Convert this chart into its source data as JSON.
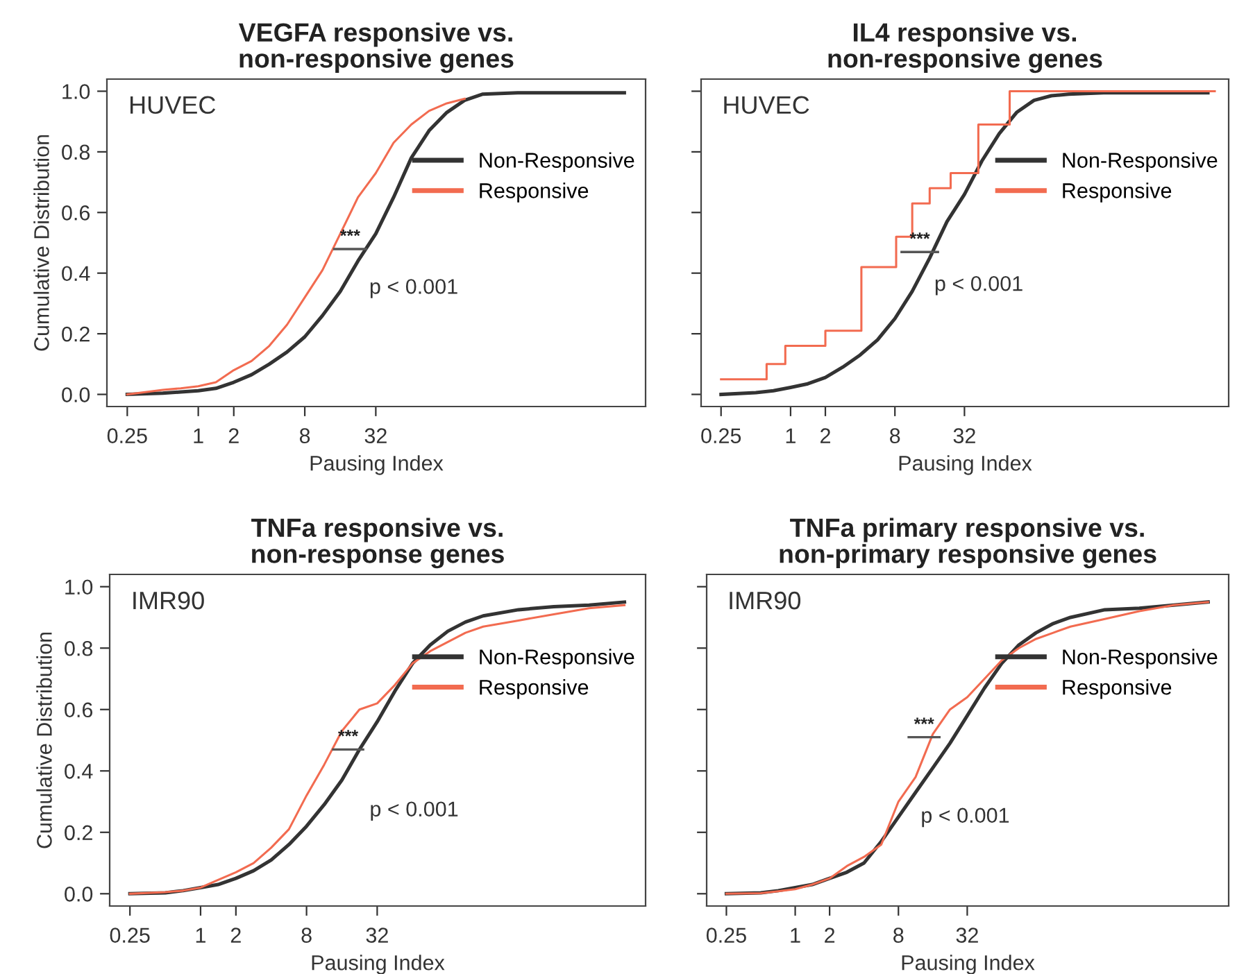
{
  "chart_data": [
    {
      "type": "line",
      "title": "VEGFA responsive vs.\nnon-responsive genes",
      "xlabel": "Pausing Index",
      "ylabel": "Cumulative Distribution",
      "log": "x",
      "legend": "right",
      "x": [
        0.25,
        0.5,
        0.71,
        1,
        1.41,
        2,
        2.83,
        4,
        5.66,
        8,
        11.3,
        16,
        22.6,
        32,
        45.3,
        64,
        90.5,
        128,
        181,
        256,
        512,
        1024,
        2048,
        4096
      ],
      "series": [
        {
          "name": "Non-Responsive",
          "color": "#333333",
          "values": [
            0,
            0.004,
            0.008,
            0.012,
            0.02,
            0.04,
            0.065,
            0.1,
            0.14,
            0.19,
            0.26,
            0.34,
            0.44,
            0.53,
            0.65,
            0.78,
            0.87,
            0.93,
            0.97,
            0.99,
            0.995,
            0.995,
            0.995,
            0.995
          ]
        },
        {
          "name": "Responsive",
          "color": "#f26b50",
          "values": [
            0,
            0.015,
            0.02,
            0.027,
            0.04,
            0.08,
            0.11,
            0.16,
            0.23,
            0.32,
            0.41,
            0.53,
            0.65,
            0.73,
            0.83,
            0.89,
            0.935,
            0.96,
            0.975,
            null,
            null,
            null,
            null,
            null
          ]
        }
      ],
      "annotations": [
        "HUVEC",
        "***",
        "p < 0.001"
      ],
      "xlim": [
        0.168,
        6200
      ],
      "xticks": [
        0.25,
        1,
        2,
        8,
        32
      ],
      "ylim": [
        -0.04,
        1.04
      ],
      "yticks": [
        {
          "value": 0,
          "label": "0.0"
        },
        {
          "value": 0.2,
          "label": "0.2"
        },
        {
          "value": 0.4,
          "label": "0.4"
        },
        {
          "value": 0.6,
          "label": "0.6"
        },
        {
          "value": 0.8,
          "label": "0.8"
        },
        {
          "value": 1,
          "label": "1.0"
        }
      ]
    },
    {
      "type": "line",
      "title": "IL4 responsive vs.\nnon-responsive genes",
      "xlabel": "Pausing Index",
      "log": "x",
      "legend": "right",
      "tick_labels": "x",
      "x": [
        0.25,
        0.5,
        0.71,
        1,
        1.41,
        2,
        2.83,
        4,
        5.66,
        8,
        11.3,
        16,
        22.6,
        32,
        45.3,
        64,
        90.5,
        128,
        181,
        256,
        512,
        1024,
        2048,
        4096
      ],
      "series": [
        {
          "name": "Non-Responsive",
          "color": "#333333",
          "values": [
            0,
            0.006,
            0.012,
            0.023,
            0.035,
            0.056,
            0.09,
            0.13,
            0.18,
            0.25,
            0.34,
            0.45,
            0.57,
            0.66,
            0.77,
            0.86,
            0.93,
            0.97,
            0.985,
            0.99,
            0.995,
            0.995,
            0.995,
            0.995
          ]
        },
        {
          "name": "Responsive",
          "color": "#f26b50",
          "type": "step",
          "x": [
            0.25,
            0.62,
            0.9,
            2,
            4.1,
            8.2,
            11.3,
            16,
            24.3,
            42.2,
            78.8,
            4700
          ],
          "values": [
            0.05,
            0.1,
            0.16,
            0.21,
            0.42,
            0.52,
            0.63,
            0.68,
            0.73,
            0.89,
            1.0,
            1.0
          ]
        }
      ],
      "annotations": [
        "HUVEC",
        "***",
        "p < 0.001"
      ],
      "xlim": [
        0.168,
        6200
      ],
      "xticks": [
        0.25,
        1,
        2,
        8,
        32
      ],
      "ylim": [
        -0.04,
        1.04
      ],
      "yticks": [
        {
          "value": 0,
          "label": null
        },
        {
          "value": 0.2,
          "label": null
        },
        {
          "value": 0.4,
          "label": null
        },
        {
          "value": 0.6,
          "label": null
        },
        {
          "value": 0.8,
          "label": null
        },
        {
          "value": 1,
          "label": null
        }
      ]
    },
    {
      "type": "line",
      "title": "TNFa responsive vs.\nnon-response genes",
      "xlabel": "Pausing Index",
      "ylabel": "Cumulative Distribution",
      "log": "x",
      "legend": "right",
      "x": [
        0.25,
        0.5,
        0.71,
        1,
        1.41,
        2,
        2.83,
        4,
        5.66,
        8,
        11.3,
        16,
        22.6,
        32,
        45.3,
        64,
        90.5,
        128,
        181,
        256,
        512,
        1024,
        2048,
        4096
      ],
      "series": [
        {
          "name": "Non-Responsive",
          "color": "#333333",
          "values": [
            0,
            0.003,
            0.01,
            0.02,
            0.03,
            0.05,
            0.075,
            0.11,
            0.16,
            0.22,
            0.29,
            0.37,
            0.47,
            0.56,
            0.66,
            0.75,
            0.81,
            0.855,
            0.885,
            0.905,
            0.925,
            0.935,
            0.94,
            0.95
          ]
        },
        {
          "name": "Responsive",
          "color": "#f26b50",
          "values": [
            0,
            0.005,
            0.01,
            0.02,
            0.045,
            0.07,
            0.1,
            0.15,
            0.21,
            0.32,
            0.42,
            0.53,
            0.6,
            0.62,
            0.68,
            0.75,
            0.79,
            0.82,
            0.85,
            0.87,
            0.89,
            0.91,
            0.93,
            0.94
          ]
        }
      ],
      "annotations": [
        "IMR90",
        "***",
        "p < 0.001"
      ],
      "xlim": [
        0.168,
        6200
      ],
      "xticks": [
        0.25,
        1,
        2,
        8,
        32
      ],
      "ylim": [
        -0.04,
        1.04
      ],
      "yticks": [
        {
          "value": 0,
          "label": "0.0"
        },
        {
          "value": 0.2,
          "label": "0.2"
        },
        {
          "value": 0.4,
          "label": "0.4"
        },
        {
          "value": 0.6,
          "label": "0.6"
        },
        {
          "value": 0.8,
          "label": "0.8"
        },
        {
          "value": 1,
          "label": "1.0"
        }
      ]
    },
    {
      "type": "line",
      "title": "TNFa primary responsive vs.\nnon-primary responsive genes",
      "xlabel": "Pausing Index",
      "log": "x",
      "legend": "right",
      "tick_labels": "x",
      "x": [
        0.25,
        0.5,
        0.71,
        1,
        1.41,
        2,
        2.83,
        4,
        5.66,
        8,
        11.3,
        16,
        22.6,
        32,
        45.3,
        64,
        90.5,
        128,
        181,
        256,
        512,
        1024,
        2048,
        4096
      ],
      "series": [
        {
          "name": "Non-Responsive",
          "color": "#333333",
          "values": [
            0,
            0.003,
            0.01,
            0.02,
            0.03,
            0.05,
            0.07,
            0.1,
            0.17,
            0.25,
            0.33,
            0.41,
            0.49,
            0.58,
            0.67,
            0.75,
            0.81,
            0.85,
            0.88,
            0.9,
            0.925,
            0.93,
            0.94,
            0.95
          ]
        },
        {
          "name": "Responsive",
          "color": "#f26b50",
          "values": [
            0,
            0.002,
            0.008,
            0.015,
            0.03,
            0.05,
            0.09,
            0.12,
            0.16,
            0.3,
            0.38,
            0.52,
            0.6,
            0.64,
            0.7,
            0.76,
            0.8,
            0.83,
            0.85,
            0.87,
            0.895,
            0.92,
            0.94,
            0.95
          ]
        }
      ],
      "annotations": [
        "IMR90",
        "***",
        "p < 0.001"
      ],
      "xlim": [
        0.168,
        6200
      ],
      "xticks": [
        0.25,
        1,
        2,
        8,
        32
      ],
      "ylim": [
        -0.04,
        1.04
      ],
      "yticks": [
        {
          "value": 0,
          "label": null
        },
        {
          "value": 0.2,
          "label": null
        },
        {
          "value": 0.4,
          "label": null
        },
        {
          "value": 0.6,
          "label": null
        },
        {
          "value": 0.8,
          "label": null
        },
        {
          "value": 1,
          "label": null
        }
      ]
    }
  ]
}
